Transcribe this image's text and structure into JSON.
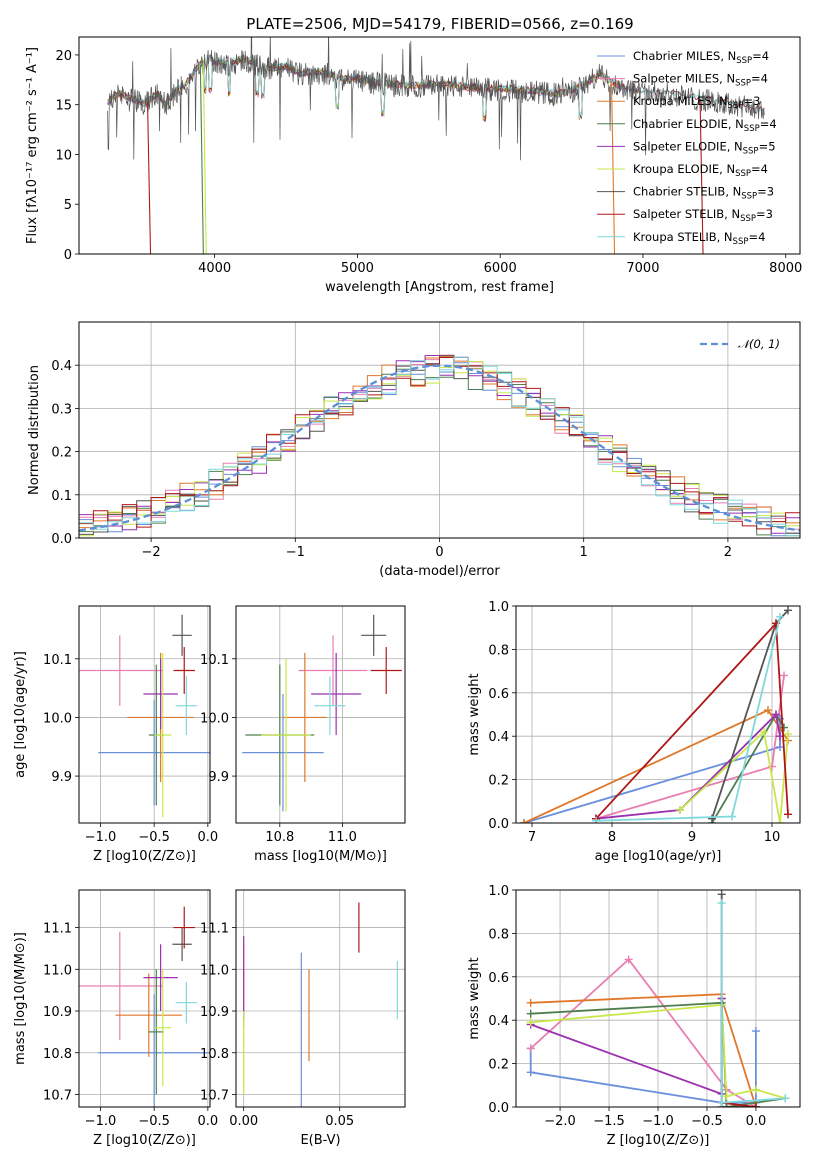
{
  "figure_title": "PLATE=2506, MJD=54179, FIBERID=0566, z=0.169",
  "colors": {
    "Chabrier MILES": "#6a8fdc",
    "Salpeter MILES": "#e87fb3",
    "Kroupa MILES": "#e0782a",
    "Chabrier ELODIE": "#4f7f4f",
    "Salpeter ELODIE": "#9b30b0",
    "Kroupa ELODIE": "#c8e84a",
    "Chabrier STELIB": "#555555",
    "Salpeter STELIB": "#b01818",
    "Kroupa STELIB": "#7fd8dc"
  },
  "chart_data": [
    {
      "id": "spectrum",
      "type": "line",
      "title": "PLATE=2506, MJD=54179, FIBERID=0566, z=0.169",
      "xlabel": "wavelength [Angstrom, rest frame]",
      "ylabel": "Flux [fλ10⁻¹⁷ erg cm⁻² s⁻¹ A⁻¹]",
      "xlim": [
        3050,
        8100
      ],
      "ylim": [
        0,
        21.8
      ],
      "xticks": [
        4000,
        5000,
        6000,
        7000,
        8000
      ],
      "yticks": [
        0,
        5,
        10,
        15,
        20
      ],
      "grid": false,
      "legend_position": "top-right",
      "legend": [
        "Chabrier MILES, N_SSP=4",
        "Salpeter MILES, N_SSP=4",
        "Kroupa MILES, N_SSP=3",
        "Chabrier ELODIE, N_SSP=4",
        "Salpeter ELODIE, N_SSP=5",
        "Kroupa ELODIE, N_SSP=4",
        "Chabrier STELIB, N_SSP=3",
        "Salpeter STELIB, N_SSP=3",
        "Kroupa STELIB, N_SSP=4"
      ],
      "data_x": [
        3250,
        3300,
        3350,
        3400,
        3450,
        3500,
        3550,
        3600,
        3650,
        3700,
        3750,
        3800,
        3850,
        3900,
        3950,
        4000,
        4100,
        4200,
        4300,
        4400,
        4500,
        4600,
        4700,
        4800,
        4900,
        5000,
        5200,
        5400,
        5600,
        5800,
        6000,
        6200,
        6400,
        6500,
        6600,
        6700,
        6800,
        6900,
        7000,
        7200,
        7400,
        7600,
        7800,
        7850
      ],
      "data_y": [
        15,
        15.8,
        16,
        15.5,
        15.4,
        15,
        15.5,
        16,
        15,
        15.7,
        16.5,
        17,
        18,
        19,
        19.5,
        19.2,
        19,
        19.5,
        19,
        18.5,
        18.7,
        18,
        18.2,
        18,
        17.5,
        17.5,
        17,
        16.8,
        17,
        16.6,
        16.5,
        16.3,
        16,
        16.3,
        17,
        18,
        17,
        16.5,
        16.2,
        16,
        15.5,
        15,
        14.5,
        14.2
      ],
      "drops": [
        {
          "series": "Salpeter STELIB",
          "x": 3530
        },
        {
          "series": "Kroupa ELODIE",
          "x": 3920
        },
        {
          "series": "Chabrier ELODIE",
          "x": 3900
        },
        {
          "series": "Kroupa MILES",
          "x": 6780
        },
        {
          "series": "Salpeter STELIB",
          "x": 7400
        }
      ]
    },
    {
      "id": "residuals",
      "type": "histogram",
      "xlabel": "(data-model)/error",
      "ylabel": "Normed distribution",
      "xlim": [
        -2.5,
        2.5
      ],
      "ylim": [
        0,
        0.5
      ],
      "xticks": [
        -2,
        -1,
        0,
        1,
        2
      ],
      "yticks": [
        0,
        0.1,
        0.2,
        0.3,
        0.4
      ],
      "grid": true,
      "legend_position": "top-right",
      "legend": [
        "𝒩(0, 1)"
      ],
      "reference_curve": "normal(0,1)",
      "bins": [
        -2.5,
        2.5,
        50
      ]
    },
    {
      "id": "age-vs-Z",
      "type": "scatter",
      "xlabel": "Z [log10(Z/Z⊙)]",
      "ylabel": "age  [log10(age/yr)]",
      "xlim": [
        -1.2,
        0.02
      ],
      "ylim": [
        9.82,
        10.19
      ],
      "xticks": [
        -1.0,
        -0.5,
        0.0
      ],
      "yticks": [
        9.9,
        10.0,
        10.1
      ],
      "grid": true,
      "points": [
        {
          "series": "Chabrier MILES",
          "x": -0.5,
          "y": 9.94,
          "xerr": 0.52,
          "yerr": 0.09
        },
        {
          "series": "Salpeter MILES",
          "x": -0.82,
          "y": 10.08,
          "xerr": 0.4,
          "yerr": 0.06
        },
        {
          "series": "Kroupa MILES",
          "x": -0.44,
          "y": 10.0,
          "xerr": 0.31,
          "yerr": 0.11
        },
        {
          "series": "Chabrier ELODIE",
          "x": -0.48,
          "y": 9.97,
          "xerr": 0.07,
          "yerr": 0.12
        },
        {
          "series": "Salpeter ELODIE",
          "x": -0.44,
          "y": 10.04,
          "xerr": 0.16,
          "yerr": 0.06
        },
        {
          "series": "Kroupa ELODIE",
          "x": -0.42,
          "y": 9.97,
          "xerr": 0.08,
          "yerr": 0.14
        },
        {
          "series": "Chabrier STELIB",
          "x": -0.24,
          "y": 10.14,
          "xerr": 0.09,
          "yerr": 0.035
        },
        {
          "series": "Salpeter STELIB",
          "x": -0.22,
          "y": 10.08,
          "xerr": 0.1,
          "yerr": 0.04
        },
        {
          "series": "Kroupa STELIB",
          "x": -0.2,
          "y": 10.02,
          "xerr": 0.1,
          "yerr": 0.05
        }
      ]
    },
    {
      "id": "age-vs-mass",
      "type": "scatter",
      "xlabel": "mass [log10(M/M⊙)]",
      "ylabel": "",
      "xlim": [
        10.66,
        11.2
      ],
      "ylim": [
        9.82,
        10.19
      ],
      "xticks": [
        10.8,
        11.0
      ],
      "yticks": [
        9.9,
        10.0,
        10.1
      ],
      "grid": true,
      "points": [
        {
          "series": "Chabrier MILES",
          "x": 10.81,
          "y": 9.94,
          "xerr": 0.13,
          "yerr": 0.1
        },
        {
          "series": "Salpeter MILES",
          "x": 10.97,
          "y": 10.08,
          "xerr": 0.11,
          "yerr": 0.06
        },
        {
          "series": "Kroupa MILES",
          "x": 10.88,
          "y": 10.0,
          "xerr": 0.07,
          "yerr": 0.11
        },
        {
          "series": "Chabrier ELODIE",
          "x": 10.8,
          "y": 9.97,
          "xerr": 0.11,
          "yerr": 0.12
        },
        {
          "series": "Salpeter ELODIE",
          "x": 10.98,
          "y": 10.04,
          "xerr": 0.08,
          "yerr": 0.07
        },
        {
          "series": "Kroupa ELODIE",
          "x": 10.82,
          "y": 9.97,
          "xerr": 0.08,
          "yerr": 0.13
        },
        {
          "series": "Chabrier STELIB",
          "x": 11.1,
          "y": 10.14,
          "xerr": 0.04,
          "yerr": 0.035
        },
        {
          "series": "Salpeter STELIB",
          "x": 11.14,
          "y": 10.08,
          "xerr": 0.05,
          "yerr": 0.04
        },
        {
          "series": "Kroupa STELIB",
          "x": 10.96,
          "y": 10.02,
          "xerr": 0.05,
          "yerr": 0.05
        }
      ]
    },
    {
      "id": "mass-weight-vs-age",
      "type": "line",
      "xlabel": "age  [log10(age/yr)]",
      "ylabel": "mass weight",
      "xlim": [
        6.8,
        10.35
      ],
      "ylim": [
        0,
        1
      ],
      "xticks": [
        7,
        8,
        9,
        10
      ],
      "yticks": [
        0.0,
        0.2,
        0.4,
        0.6,
        0.8,
        1.0
      ],
      "grid": true,
      "series": [
        {
          "name": "Chabrier MILES",
          "x": [
            6.9,
            10.1,
            10.1
          ],
          "y": [
            0.0,
            0.35,
            0.48
          ]
        },
        {
          "name": "Salpeter MILES",
          "x": [
            7.8,
            10.0,
            10.15
          ],
          "y": [
            0.02,
            0.26,
            0.68
          ]
        },
        {
          "name": "Kroupa MILES",
          "x": [
            6.9,
            9.95,
            10.2
          ],
          "y": [
            0.0,
            0.52,
            0.38
          ]
        },
        {
          "name": "Chabrier ELODIE",
          "x": [
            9.25,
            10.05,
            10.15
          ],
          "y": [
            0.0,
            0.5,
            0.44
          ]
        },
        {
          "name": "Salpeter ELODIE",
          "x": [
            7.8,
            8.85,
            10.05,
            10.1
          ],
          "y": [
            0.02,
            0.06,
            0.5,
            0.4
          ]
        },
        {
          "name": "Kroupa ELODIE",
          "x": [
            8.85,
            9.9,
            10.1,
            10.2
          ],
          "y": [
            0.06,
            0.42,
            0.0,
            0.41
          ]
        },
        {
          "name": "Chabrier STELIB",
          "x": [
            9.25,
            10.05,
            10.2
          ],
          "y": [
            0.02,
            0.92,
            0.98
          ]
        },
        {
          "name": "Salpeter STELIB",
          "x": [
            7.8,
            10.05,
            10.2
          ],
          "y": [
            0.02,
            0.92,
            0.04
          ]
        },
        {
          "name": "Kroupa STELIB",
          "x": [
            7.8,
            9.5,
            10.1
          ],
          "y": [
            0.01,
            0.03,
            0.95
          ]
        }
      ]
    },
    {
      "id": "mass-vs-Z",
      "type": "scatter",
      "xlabel": "Z [log10(Z/Z⊙)]",
      "ylabel": "mass [log10(M/M⊙)]",
      "xlim": [
        -1.2,
        0.02
      ],
      "ylim": [
        10.67,
        11.19
      ],
      "xticks": [
        -1.0,
        -0.5,
        0.0
      ],
      "yticks": [
        10.7,
        10.8,
        10.9,
        11.0,
        11.1
      ],
      "grid": true,
      "points": [
        {
          "series": "Chabrier MILES",
          "x": -0.5,
          "y": 10.8,
          "xerr": 0.52,
          "yerr": 0.14
        },
        {
          "series": "Salpeter MILES",
          "x": -0.82,
          "y": 10.96,
          "xerr": 0.4,
          "yerr": 0.13
        },
        {
          "series": "Kroupa MILES",
          "x": -0.55,
          "y": 10.89,
          "xerr": 0.31,
          "yerr": 0.1
        },
        {
          "series": "Chabrier ELODIE",
          "x": -0.48,
          "y": 10.85,
          "xerr": 0.07,
          "yerr": 0.15
        },
        {
          "series": "Salpeter ELODIE",
          "x": -0.44,
          "y": 10.98,
          "xerr": 0.16,
          "yerr": 0.08
        },
        {
          "series": "Kroupa ELODIE",
          "x": -0.42,
          "y": 10.86,
          "xerr": 0.08,
          "yerr": 0.14
        },
        {
          "series": "Chabrier STELIB",
          "x": -0.24,
          "y": 11.06,
          "xerr": 0.09,
          "yerr": 0.04
        },
        {
          "series": "Salpeter STELIB",
          "x": -0.22,
          "y": 11.1,
          "xerr": 0.1,
          "yerr": 0.05
        },
        {
          "series": "Kroupa STELIB",
          "x": -0.2,
          "y": 10.92,
          "xerr": 0.1,
          "yerr": 0.05
        }
      ]
    },
    {
      "id": "mass-vs-EBV",
      "type": "scatter",
      "xlabel": "E(B-V)",
      "ylabel": "",
      "xlim": [
        -0.004,
        0.084
      ],
      "ylim": [
        10.67,
        11.19
      ],
      "xticks": [
        0.0,
        0.05
      ],
      "yticks": [
        10.7,
        10.8,
        10.9,
        11.0,
        11.1
      ],
      "grid": true,
      "points": [
        {
          "series": "Chabrier MILES",
          "x": 0.03,
          "y": 10.85,
          "xerr": 0,
          "yerr": 0.19
        },
        {
          "series": "Salpeter MILES",
          "x": 0.0,
          "y": 10.96,
          "xerr": 0,
          "yerr": 0.1
        },
        {
          "series": "Kroupa MILES",
          "x": 0.034,
          "y": 10.89,
          "xerr": 0,
          "yerr": 0.11
        },
        {
          "series": "Salpeter ELODIE",
          "x": 0.0,
          "y": 10.98,
          "xerr": 0,
          "yerr": 0.1
        },
        {
          "series": "Kroupa ELODIE",
          "x": 0.0,
          "y": 10.8,
          "xerr": 0,
          "yerr": 0.1
        },
        {
          "series": "Salpeter STELIB",
          "x": 0.06,
          "y": 11.1,
          "xerr": 0,
          "yerr": 0.06
        },
        {
          "series": "Kroupa STELIB",
          "x": 0.08,
          "y": 10.95,
          "xerr": 0,
          "yerr": 0.07
        }
      ]
    },
    {
      "id": "mass-weight-vs-Z",
      "type": "line",
      "xlabel": "Z [log10(Z/Z⊙)]",
      "ylabel": "mass weight",
      "xlim": [
        -2.45,
        0.45
      ],
      "ylim": [
        0,
        1
      ],
      "xticks": [
        -2.0,
        -1.5,
        -1.0,
        -0.5,
        0.0
      ],
      "yticks": [
        0.0,
        0.2,
        0.4,
        0.6,
        0.8,
        1.0
      ],
      "grid": true,
      "series": [
        {
          "name": "Chabrier MILES",
          "x": [
            -2.3,
            -2.3,
            -0.35,
            0.0,
            0.0
          ],
          "y": [
            0.27,
            0.16,
            0.02,
            0.02,
            0.35
          ]
        },
        {
          "name": "Salpeter MILES",
          "x": [
            -2.3,
            -1.3,
            -0.3,
            0.0
          ],
          "y": [
            0.27,
            0.68,
            0.08,
            0.0
          ]
        },
        {
          "name": "Kroupa MILES",
          "x": [
            -2.3,
            -0.35,
            -0.35,
            0.0
          ],
          "y": [
            0.48,
            0.52,
            0.5,
            0.0
          ]
        },
        {
          "name": "Chabrier ELODIE",
          "x": [
            -2.3,
            -0.35,
            -0.3,
            0.3
          ],
          "y": [
            0.43,
            0.48,
            0.0,
            0.04
          ]
        },
        {
          "name": "Salpeter ELODIE",
          "x": [
            -2.3,
            -0.35,
            -0.35
          ],
          "y": [
            0.38,
            0.06,
            0.5
          ]
        },
        {
          "name": "Kroupa ELODIE",
          "x": [
            -2.3,
            -0.35,
            -0.3,
            0.0,
            0.3
          ],
          "y": [
            0.39,
            0.47,
            0.05,
            0.08,
            0.04
          ]
        },
        {
          "name": "Chabrier STELIB",
          "x": [
            -0.35,
            -0.35,
            0.0
          ],
          "y": [
            0.98,
            0.0,
            0.0
          ]
        },
        {
          "name": "Salpeter STELIB",
          "x": [
            -0.35,
            0.0
          ],
          "y": [
            0.02,
            0.0
          ]
        },
        {
          "name": "Kroupa STELIB",
          "x": [
            -0.35,
            -0.35,
            0.3
          ],
          "y": [
            0.94,
            0.02,
            0.04
          ]
        }
      ]
    }
  ]
}
